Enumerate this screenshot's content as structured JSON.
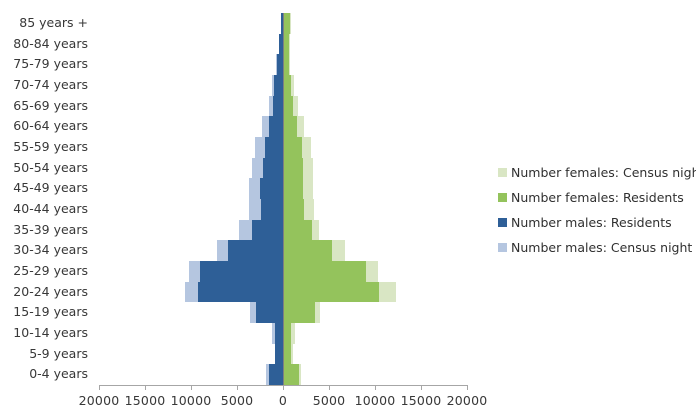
{
  "chart_data": {
    "type": "bar",
    "subtype": "population-pyramid",
    "title": "",
    "xlabel": "",
    "ylabel": "",
    "grid": false,
    "categories": [
      "85 years +",
      "80-84 years",
      "75-79 years",
      "70-74 years",
      "65-69 years",
      "60-64 years",
      "55-59 years",
      "50-54 years",
      "45-49 years",
      "40-44 years",
      "35-39 years",
      "30-34 years",
      "25-29 years",
      "20-24 years",
      "15-19 years",
      "10-14 years",
      "5-9 years",
      "0-4 years"
    ],
    "series": [
      {
        "key": "males_census",
        "name": "Number males: Census night",
        "side": "left",
        "layer": "back",
        "color": "#b5c6e0",
        "values": [
          250,
          480,
          800,
          1200,
          1500,
          2250,
          3000,
          3400,
          3700,
          3750,
          4800,
          7200,
          10250,
          10700,
          3600,
          1250,
          850,
          1850
        ]
      },
      {
        "key": "males_residents",
        "name": "Number males: Residents",
        "side": "left",
        "layer": "front",
        "color": "#2e5f97",
        "values": [
          250,
          400,
          700,
          950,
          1100,
          1550,
          1950,
          2200,
          2450,
          2400,
          3400,
          5950,
          9000,
          9200,
          2900,
          900,
          900,
          1550
        ]
      },
      {
        "key": "females_residents",
        "name": "Number females: Residents",
        "side": "right",
        "layer": "front",
        "color": "#94c35c",
        "values": [
          750,
          620,
          620,
          880,
          1050,
          1500,
          2050,
          2150,
          2200,
          2300,
          3100,
          5350,
          9000,
          10450,
          3450,
          900,
          850,
          1700
        ]
      },
      {
        "key": "females_census",
        "name": "Number females: Census night",
        "side": "right",
        "layer": "back",
        "color": "#d9e6c4",
        "values": [
          850,
          730,
          800,
          1170,
          1600,
          2300,
          3050,
          3250,
          3250,
          3400,
          3950,
          6700,
          10300,
          12250,
          4050,
          1300,
          1050,
          1950
        ]
      }
    ],
    "x_axis": {
      "tick_labels": [
        "20000",
        "15000",
        "10000",
        "5000",
        "0",
        "5000",
        "10000",
        "15000",
        "20000"
      ],
      "tick_values": [
        -20000,
        -15000,
        -10000,
        -5000,
        0,
        5000,
        10000,
        15000,
        20000
      ],
      "range": [
        -20000,
        20000
      ],
      "tick_interval": 5000
    },
    "legend": {
      "position": "right",
      "entries": [
        {
          "label": "Number females: Census night",
          "color": "#d9e6c4"
        },
        {
          "label": "Number females: Residents",
          "color": "#94c35c"
        },
        {
          "label": "Number males: Residents",
          "color": "#2e5f97"
        },
        {
          "label": "Number males: Census night",
          "color": "#b5c6e0"
        }
      ]
    }
  }
}
